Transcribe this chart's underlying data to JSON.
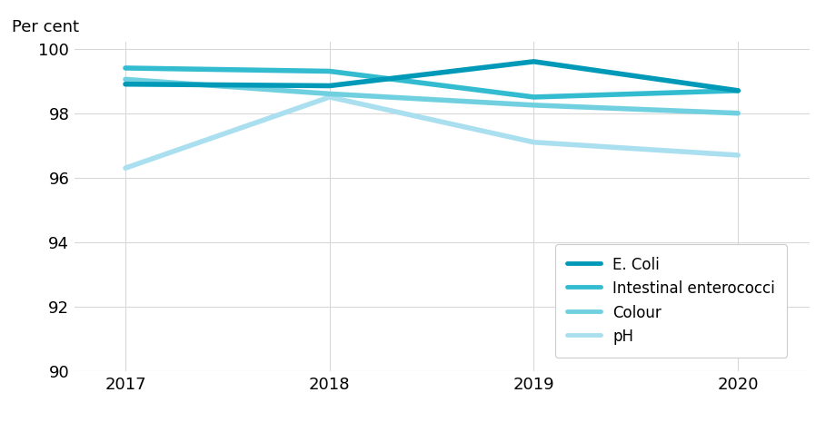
{
  "years": [
    2017,
    2018,
    2019,
    2020
  ],
  "series": {
    "E. Coli": {
      "values": [
        98.9,
        98.85,
        99.6,
        98.7
      ],
      "color": "#0099b8",
      "linewidth": 4.0,
      "zorder": 4
    },
    "Intestinal enterococci": {
      "values": [
        99.4,
        99.3,
        98.5,
        98.7
      ],
      "color": "#33bbd0",
      "linewidth": 4.0,
      "zorder": 3
    },
    "Colour": {
      "values": [
        99.05,
        98.6,
        98.25,
        98.0
      ],
      "color": "#70d0e0",
      "linewidth": 4.0,
      "zorder": 2
    },
    "pH": {
      "values": [
        96.3,
        98.5,
        97.1,
        96.7
      ],
      "color": "#aadff0",
      "linewidth": 4.0,
      "zorder": 1
    }
  },
  "per_cent_label": "Per cent",
  "ylim": [
    90,
    100.2
  ],
  "yticks": [
    90,
    92,
    94,
    96,
    98,
    100
  ],
  "xlim": [
    2016.75,
    2020.35
  ],
  "xticks": [
    2017,
    2018,
    2019,
    2020
  ],
  "background_color": "#ffffff",
  "grid_color": "#d8d8d8",
  "tick_fontsize": 13,
  "label_fontsize": 13,
  "legend_fontsize": 12
}
